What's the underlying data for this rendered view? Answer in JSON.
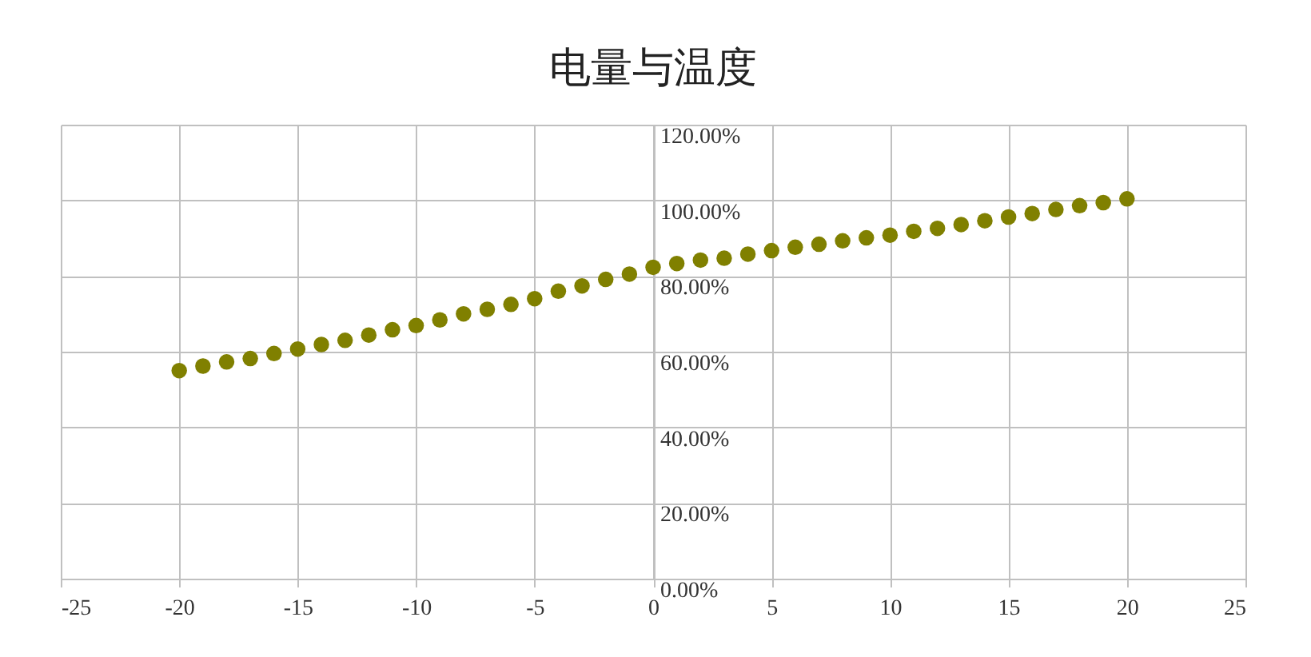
{
  "chart_data": {
    "type": "scatter",
    "title": "电量与温度",
    "x": [
      -20,
      -19,
      -18,
      -17,
      -16,
      -15,
      -14,
      -13,
      -12,
      -11,
      -10,
      -9,
      -8,
      -7,
      -6,
      -5,
      -4,
      -3,
      -2,
      -1,
      0,
      1,
      2,
      3,
      4,
      5,
      6,
      7,
      8,
      9,
      10,
      11,
      12,
      13,
      14,
      15,
      16,
      17,
      18,
      19,
      20
    ],
    "series": [
      {
        "color": "#808000",
        "values": [
          55,
          56.2,
          57.3,
          58.2,
          59.5,
          60.7,
          61.9,
          63,
          64.4,
          65.8,
          66.9,
          68.4,
          70,
          71.2,
          72.5,
          74,
          76,
          77.4,
          79.1,
          80.5,
          82.3,
          83.3,
          84.2,
          84.7,
          85.8,
          86.7,
          87.6,
          88.4,
          89.3,
          90.1,
          90.8,
          91.8,
          92.6,
          93.6,
          94.6,
          95.6,
          96.5,
          97.6,
          98.6,
          99.4,
          100.4
        ]
      }
    ],
    "xlim": [
      -25,
      25
    ],
    "xticks": [
      -25,
      -20,
      -15,
      -10,
      -5,
      0,
      5,
      10,
      15,
      20,
      25
    ],
    "ylim": [
      0,
      120
    ],
    "yticks": [
      {
        "value": 0,
        "label": "0.00%"
      },
      {
        "value": 20,
        "label": "20.00%"
      },
      {
        "value": 40,
        "label": "40.00%"
      },
      {
        "value": 60,
        "label": "60.00%"
      },
      {
        "value": 80,
        "label": "80.00%"
      },
      {
        "value": 100,
        "label": "100.00%"
      },
      {
        "value": 120,
        "label": "120.00%"
      }
    ],
    "grid": true,
    "marker": "circle"
  }
}
